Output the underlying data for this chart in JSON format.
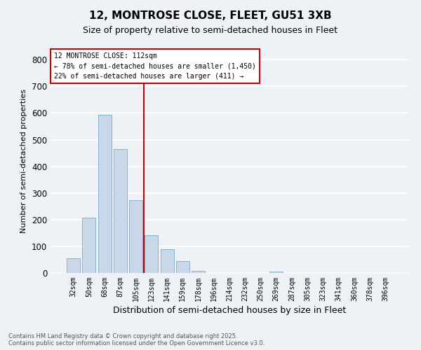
{
  "title_line1": "12, MONTROSE CLOSE, FLEET, GU51 3XB",
  "title_line2": "Size of property relative to semi-detached houses in Fleet",
  "xlabel": "Distribution of semi-detached houses by size in Fleet",
  "ylabel": "Number of semi-detached properties",
  "categories": [
    "32sqm",
    "50sqm",
    "68sqm",
    "87sqm",
    "105sqm",
    "123sqm",
    "141sqm",
    "159sqm",
    "178sqm",
    "196sqm",
    "214sqm",
    "232sqm",
    "250sqm",
    "269sqm",
    "287sqm",
    "305sqm",
    "323sqm",
    "341sqm",
    "360sqm",
    "378sqm",
    "396sqm"
  ],
  "values": [
    55,
    207,
    592,
    465,
    272,
    142,
    90,
    45,
    7,
    0,
    0,
    0,
    0,
    5,
    0,
    0,
    0,
    0,
    0,
    0,
    0
  ],
  "bar_color": "#c8d8e8",
  "bar_edge_color": "#7aaac8",
  "vline_x_index": 5,
  "vline_color": "#cc0000",
  "annotation_title": "12 MONTROSE CLOSE: 112sqm",
  "annotation_line2": "← 78% of semi-detached houses are smaller (1,450)",
  "annotation_line3": "22% of semi-detached houses are larger (411) →",
  "annotation_box_color": "#cc0000",
  "ylim": [
    0,
    840
  ],
  "yticks": [
    0,
    100,
    200,
    300,
    400,
    500,
    600,
    700,
    800
  ],
  "footer_line1": "Contains HM Land Registry data © Crown copyright and database right 2025.",
  "footer_line2": "Contains public sector information licensed under the Open Government Licence v3.0.",
  "bg_color": "#eef2f7",
  "grid_color": "#ffffff",
  "title_fontsize": 11,
  "subtitle_fontsize": 9
}
